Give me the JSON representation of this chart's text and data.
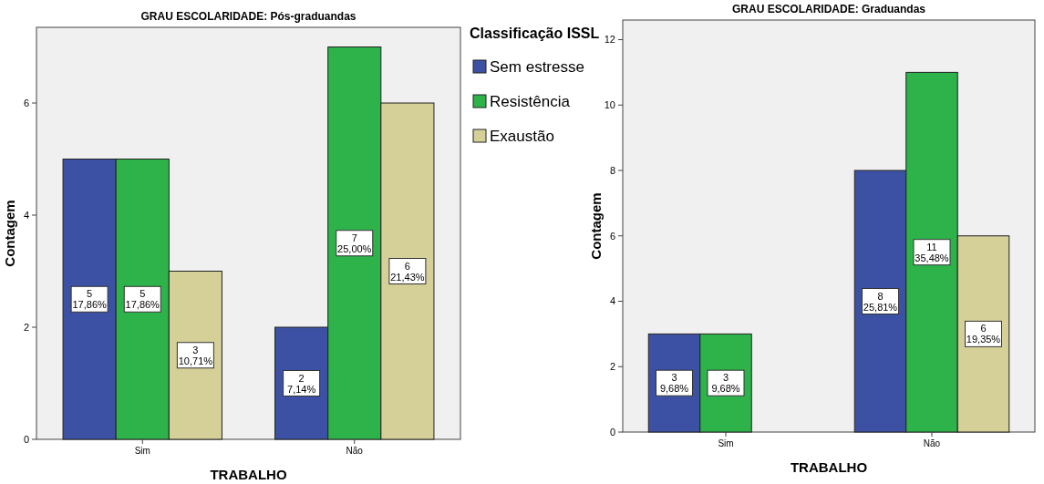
{
  "chart_data": [
    {
      "type": "bar",
      "title": "GRAU ESCOLARIDADE: Pós-graduandas",
      "xlabel": "TRABALHO",
      "ylabel": "Contagem",
      "categories": [
        "Sim",
        "Não"
      ],
      "ylim": [
        0,
        7.35
      ],
      "yticks": [
        0,
        2,
        4,
        6
      ],
      "legend": "right",
      "legend_title": "Classificação ISSL",
      "grid": false,
      "series": [
        {
          "name": "Sem estresse",
          "color": "#3c51a3",
          "values": [
            5,
            2
          ],
          "value_labels": [
            "5\n17,86%",
            "2\n7,14%"
          ]
        },
        {
          "name": "Resistência",
          "color": "#2db34a",
          "values": [
            5,
            7
          ],
          "value_labels": [
            "5\n17,86%",
            "7\n25,00%"
          ]
        },
        {
          "name": "Exaustão",
          "color": "#d5cf98",
          "values": [
            3,
            6
          ],
          "value_labels": [
            "3\n10,71%",
            "6\n21,43%"
          ]
        }
      ]
    },
    {
      "type": "bar",
      "title": "GRAU ESCOLARIDADE: Graduandas",
      "xlabel": "TRABALHO",
      "ylabel": "Contagem",
      "categories": [
        "Sim",
        "Não"
      ],
      "ylim": [
        0,
        12.6
      ],
      "yticks": [
        0,
        2,
        4,
        6,
        8,
        10,
        12
      ],
      "grid": false,
      "series": [
        {
          "color": "#3c51a3",
          "values": [
            3,
            8
          ],
          "value_labels": [
            "3\n9,68%",
            "8\n25,81%"
          ]
        },
        {
          "color": "#2db34a",
          "values": [
            3,
            11
          ],
          "value_labels": [
            "3\n9,68%",
            "11\n35,48%"
          ]
        },
        {
          "color": "#d5cf98",
          "values": [
            null,
            6
          ],
          "value_labels": [
            null,
            "6\n19,35%"
          ]
        }
      ]
    }
  ]
}
